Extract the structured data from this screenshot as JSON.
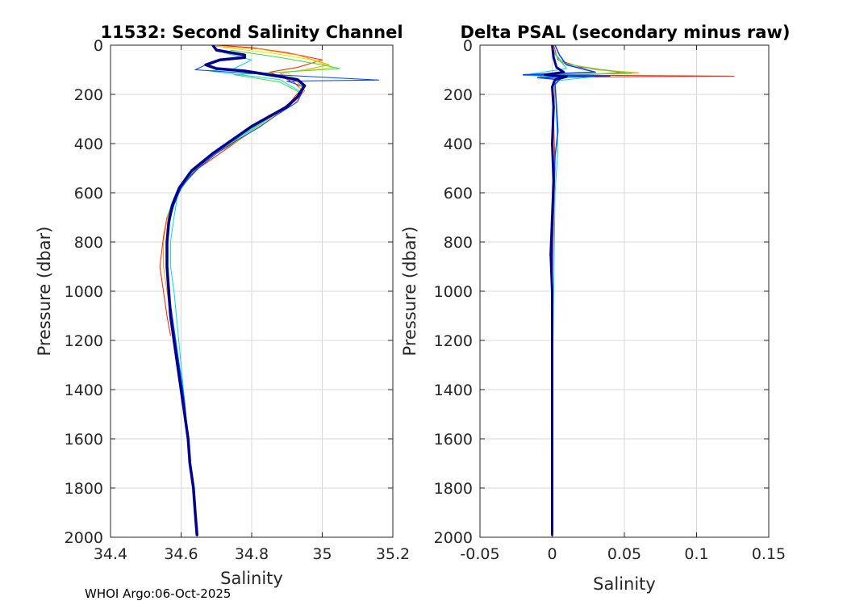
{
  "footer": "WHOI Argo:06-Oct-2025",
  "chart_data": [
    {
      "type": "line",
      "title": "11532: Second Salinity Channel",
      "xlabel": "Salinity",
      "ylabel": "Pressure (dbar)",
      "xlim": [
        34.4,
        35.2
      ],
      "ylim": [
        0,
        2000
      ],
      "y_reversed": true,
      "grid": true,
      "xticks": [
        34.4,
        34.6,
        34.8,
        35,
        35.2
      ],
      "xtick_labels": [
        "34.4",
        "34.6",
        "34.8",
        "35",
        "35.2"
      ],
      "yticks": [
        0,
        200,
        400,
        600,
        800,
        1000,
        1200,
        1400,
        1600,
        1800,
        2000
      ],
      "ytick_labels": [
        "0",
        "200",
        "400",
        "600",
        "800",
        "1000",
        "1200",
        "1400",
        "1600",
        "1800",
        "2000"
      ],
      "series": [
        {
          "name": "profile-red",
          "color": "#ff2000",
          "width": 1,
          "points": [
            [
              34.7,
              0
            ],
            [
              34.8,
              10
            ],
            [
              34.9,
              30
            ],
            [
              35.0,
              60
            ],
            [
              34.93,
              90
            ],
            [
              34.85,
              110
            ],
            [
              34.92,
              150
            ],
            [
              34.94,
              180
            ],
            [
              34.91,
              230
            ],
            [
              34.87,
              280
            ],
            [
              34.82,
              330
            ],
            [
              34.77,
              380
            ],
            [
              34.72,
              430
            ],
            [
              34.65,
              500
            ],
            [
              34.61,
              560
            ],
            [
              34.58,
              630
            ],
            [
              34.56,
              700
            ],
            [
              34.55,
              780
            ],
            [
              34.54,
              900
            ],
            [
              34.55,
              1000
            ],
            [
              34.56,
              1100
            ],
            [
              34.57,
              1180
            ]
          ]
        },
        {
          "name": "profile-orange",
          "color": "#ff9a00",
          "width": 1,
          "points": [
            [
              34.7,
              5
            ],
            [
              34.82,
              15
            ],
            [
              34.93,
              40
            ],
            [
              35.02,
              80
            ],
            [
              34.95,
              100
            ],
            [
              34.88,
              115
            ],
            [
              34.93,
              150
            ],
            [
              34.95,
              185
            ],
            [
              34.92,
              240
            ],
            [
              34.86,
              290
            ],
            [
              34.81,
              340
            ],
            [
              34.76,
              390
            ],
            [
              34.7,
              440
            ],
            [
              34.64,
              510
            ],
            [
              34.6,
              570
            ],
            [
              34.58,
              640
            ],
            [
              34.56,
              710
            ],
            [
              34.55,
              800
            ],
            [
              34.55,
              900
            ],
            [
              34.56,
              1000
            ],
            [
              34.57,
              1100
            ]
          ]
        },
        {
          "name": "profile-yellow",
          "color": "#e6e600",
          "width": 1,
          "points": [
            [
              34.72,
              10
            ],
            [
              34.85,
              30
            ],
            [
              34.97,
              60
            ],
            [
              35.03,
              90
            ],
            [
              34.9,
              110
            ],
            [
              34.93,
              150
            ],
            [
              34.94,
              190
            ],
            [
              34.9,
              250
            ],
            [
              34.85,
              300
            ],
            [
              34.8,
              350
            ],
            [
              34.74,
              400
            ],
            [
              34.68,
              460
            ],
            [
              34.62,
              530
            ],
            [
              34.59,
              600
            ],
            [
              34.57,
              680
            ],
            [
              34.56,
              760
            ]
          ]
        },
        {
          "name": "profile-green",
          "color": "#3cdc3c",
          "width": 1,
          "points": [
            [
              34.74,
              20
            ],
            [
              34.88,
              50
            ],
            [
              35.0,
              80
            ],
            [
              35.05,
              95
            ],
            [
              34.88,
              110
            ],
            [
              34.75,
              120
            ],
            [
              34.88,
              150
            ],
            [
              34.94,
              195
            ],
            [
              34.9,
              250
            ],
            [
              34.84,
              300
            ],
            [
              34.79,
              350
            ],
            [
              34.73,
              410
            ],
            [
              34.66,
              480
            ],
            [
              34.61,
              550
            ],
            [
              34.58,
              620
            ],
            [
              34.56,
              700
            ]
          ]
        },
        {
          "name": "profile-cyan",
          "color": "#00d8e8",
          "width": 1,
          "points": [
            [
              34.72,
              30
            ],
            [
              34.8,
              60
            ],
            [
              34.75,
              95
            ],
            [
              34.68,
              105
            ],
            [
              34.88,
              140
            ],
            [
              34.94,
              190
            ],
            [
              34.91,
              245
            ],
            [
              34.85,
              295
            ],
            [
              34.8,
              345
            ],
            [
              34.74,
              395
            ],
            [
              34.67,
              470
            ],
            [
              34.62,
              540
            ],
            [
              34.59,
              610
            ],
            [
              34.58,
              700
            ],
            [
              34.57,
              800
            ],
            [
              34.57,
              900
            ],
            [
              34.58,
              1000
            ],
            [
              34.59,
              1150
            ],
            [
              34.6,
              1300
            ],
            [
              34.61,
              1450
            ],
            [
              34.62,
              1600
            ],
            [
              34.63,
              1750
            ],
            [
              34.64,
              1900
            ],
            [
              34.645,
              1990
            ]
          ]
        },
        {
          "name": "profile-blue",
          "color": "#0040ff",
          "width": 1,
          "points": [
            [
              34.7,
              60
            ],
            [
              34.64,
              100
            ],
            [
              34.8,
              115
            ],
            [
              35.16,
              142
            ],
            [
              34.9,
              146
            ],
            [
              34.95,
              170
            ],
            [
              34.93,
              230
            ],
            [
              34.87,
              285
            ],
            [
              34.82,
              335
            ],
            [
              34.76,
              385
            ],
            [
              34.7,
              440
            ],
            [
              34.64,
              510
            ],
            [
              34.6,
              580
            ],
            [
              34.58,
              650
            ],
            [
              34.56,
              750
            ],
            [
              34.56,
              850
            ],
            [
              34.56,
              950
            ],
            [
              34.57,
              1050
            ],
            [
              34.58,
              1150
            ],
            [
              34.595,
              1300
            ],
            [
              34.61,
              1450
            ],
            [
              34.62,
              1600
            ],
            [
              34.63,
              1750
            ],
            [
              34.64,
              1900
            ],
            [
              34.645,
              1995
            ]
          ]
        },
        {
          "name": "profile-navy",
          "color": "#00008c",
          "width": 3.5,
          "points": [
            [
              34.69,
              0
            ],
            [
              34.7,
              20
            ],
            [
              34.78,
              40
            ],
            [
              34.78,
              50
            ],
            [
              34.71,
              60
            ],
            [
              34.67,
              80
            ],
            [
              34.7,
              95
            ],
            [
              34.78,
              105
            ],
            [
              34.87,
              125
            ],
            [
              34.93,
              140
            ],
            [
              34.95,
              165
            ],
            [
              34.93,
              210
            ],
            [
              34.9,
              250
            ],
            [
              34.85,
              290
            ],
            [
              34.8,
              330
            ],
            [
              34.75,
              380
            ],
            [
              34.69,
              440
            ],
            [
              34.63,
              510
            ],
            [
              34.595,
              580
            ],
            [
              34.575,
              650
            ],
            [
              34.565,
              720
            ],
            [
              34.56,
              800
            ],
            [
              34.56,
              900
            ],
            [
              34.565,
              1000
            ],
            [
              34.57,
              1100
            ],
            [
              34.58,
              1200
            ],
            [
              34.59,
              1300
            ],
            [
              34.6,
              1400
            ],
            [
              34.61,
              1500
            ],
            [
              34.62,
              1600
            ],
            [
              34.625,
              1700
            ],
            [
              34.635,
              1800
            ],
            [
              34.64,
              1900
            ],
            [
              34.645,
              1990
            ]
          ]
        }
      ]
    },
    {
      "type": "line",
      "title": "Delta PSAL (secondary minus raw)",
      "xlabel": "Salinity",
      "ylabel": "Pressure (dbar)",
      "xlim": [
        -0.05,
        0.15
      ],
      "ylim": [
        0,
        2000
      ],
      "y_reversed": true,
      "grid": true,
      "xticks": [
        -0.05,
        0,
        0.05,
        0.1,
        0.15
      ],
      "xtick_labels": [
        "-0.05",
        "0",
        "0.05",
        "0.1",
        "0.15"
      ],
      "yticks": [
        0,
        200,
        400,
        600,
        800,
        1000,
        1200,
        1400,
        1600,
        1800,
        2000
      ],
      "ytick_labels": [
        "0",
        "200",
        "400",
        "600",
        "800",
        "1000",
        "1200",
        "1400",
        "1600",
        "1800",
        "2000"
      ],
      "series": [
        {
          "name": "delta-red",
          "color": "#ff2000",
          "width": 1,
          "points": [
            [
              0.001,
              0
            ],
            [
              0.004,
              60
            ],
            [
              0.02,
              90
            ],
            [
              0.05,
              110
            ],
            [
              0.03,
              118
            ],
            [
              0.01,
              122
            ],
            [
              0.126,
              126
            ],
            [
              0.005,
              130
            ],
            [
              0.002,
              150
            ],
            [
              0.001,
              300
            ],
            [
              0.002,
              500
            ],
            [
              0.001,
              700
            ],
            [
              0.0,
              1000
            ]
          ]
        },
        {
          "name": "delta-orange",
          "color": "#ff9a00",
          "width": 1,
          "points": [
            [
              0.0,
              10
            ],
            [
              0.006,
              70
            ],
            [
              0.03,
              100
            ],
            [
              0.06,
              112
            ],
            [
              0.02,
              118
            ],
            [
              -0.01,
              125
            ],
            [
              0.002,
              140
            ],
            [
              0.001,
              300
            ],
            [
              0.001,
              600
            ]
          ]
        },
        {
          "name": "delta-green",
          "color": "#3cdc3c",
          "width": 1,
          "points": [
            [
              0.0,
              20
            ],
            [
              0.008,
              75
            ],
            [
              0.04,
              105
            ],
            [
              0.055,
              115
            ],
            [
              -0.02,
              122
            ],
            [
              0.01,
              130
            ],
            [
              0.001,
              150
            ],
            [
              0.0,
              400
            ]
          ]
        },
        {
          "name": "delta-cyan",
          "color": "#00d8e8",
          "width": 1,
          "points": [
            [
              0.001,
              30
            ],
            [
              0.01,
              95
            ],
            [
              -0.02,
              122
            ],
            [
              0.03,
              128
            ],
            [
              0.002,
              145
            ],
            [
              0.003,
              300
            ],
            [
              0.004,
              420
            ],
            [
              0.002,
              600
            ],
            [
              0.001,
              1000
            ],
            [
              0.0,
              1500
            ],
            [
              0.0,
              1990
            ]
          ]
        },
        {
          "name": "delta-blue",
          "color": "#0040ff",
          "width": 1.5,
          "points": [
            [
              0.002,
              0
            ],
            [
              0.005,
              40
            ],
            [
              0.01,
              80
            ],
            [
              0.03,
              110
            ],
            [
              -0.02,
              120
            ],
            [
              0.04,
              125
            ],
            [
              -0.01,
              132
            ],
            [
              0.005,
              140
            ],
            [
              0.002,
              160
            ],
            [
              0.003,
              250
            ],
            [
              0.004,
              350
            ],
            [
              0.002,
              450
            ],
            [
              0.001,
              600
            ],
            [
              0.0,
              800
            ],
            [
              0.0,
              1000
            ],
            [
              0.0,
              1300
            ],
            [
              0.0,
              1600
            ],
            [
              0.0,
              1990
            ]
          ]
        },
        {
          "name": "delta-navy",
          "color": "#00008c",
          "width": 3,
          "points": [
            [
              0.0,
              0
            ],
            [
              0.001,
              50
            ],
            [
              0.003,
              90
            ],
            [
              0.008,
              110
            ],
            [
              -0.005,
              120
            ],
            [
              0.01,
              128
            ],
            [
              0.002,
              140
            ],
            [
              0.0,
              170
            ],
            [
              0.001,
              250
            ],
            [
              0.0,
              400
            ],
            [
              0.001,
              550
            ],
            [
              0.0,
              700
            ],
            [
              -0.001,
              850
            ],
            [
              0.0,
              1000
            ],
            [
              0.0,
              1200
            ],
            [
              0.0,
              1400
            ],
            [
              0.0,
              1600
            ],
            [
              0.0,
              1800
            ],
            [
              0.0,
              1990
            ]
          ]
        }
      ]
    }
  ]
}
